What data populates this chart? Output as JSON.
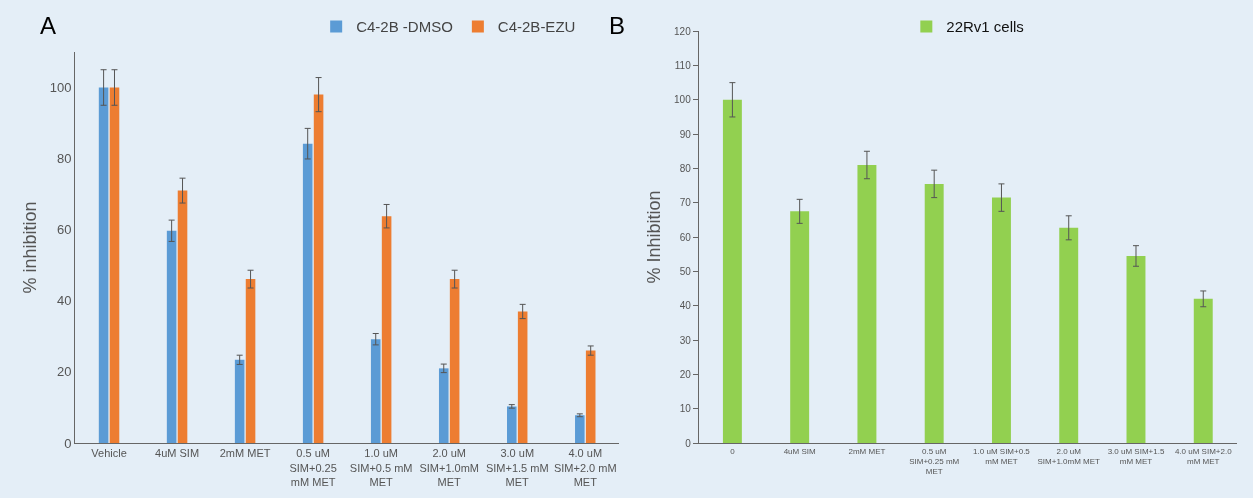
{
  "chart_data": [
    {
      "type": "bar",
      "annotations": [
        "A"
      ],
      "ylabel": "% inhibition",
      "categories": [
        "Vehicle",
        "4uM SIM",
        "2mM MET",
        "0.5 uM SIM+0.25 mM MET",
        "1.0 uM SIM+0.5 mM MET",
        "2.0 uM SIM+1.0mM MET",
        "3.0 uM SIM+1.5 mM MET",
        "4.0 uM SIM+2.0 mM MET"
      ],
      "series": [
        {
          "name": "C4-2B -DMSO",
          "color": "#5b9bd5",
          "values": [
            100,
            59.7,
            23.4,
            84.2,
            29.2,
            21.0,
            10.3,
            7.8
          ],
          "errors": [
            5,
            3,
            1.3,
            4.3,
            1.6,
            1.2,
            0.5,
            0.4
          ]
        },
        {
          "name": "C4-2B-EZU",
          "color": "#ed7d31",
          "values": [
            100,
            71,
            46.1,
            98,
            63.8,
            46.1,
            37,
            26
          ],
          "errors": [
            5,
            3.5,
            2.5,
            4.8,
            3.3,
            2.5,
            2,
            1.3
          ]
        }
      ],
      "ylim": [
        0,
        110
      ],
      "yticks": [
        0,
        20,
        40,
        60,
        80,
        100
      ],
      "legend": "top right",
      "grid": false
    },
    {
      "type": "bar",
      "annotations": [
        "B"
      ],
      "ylabel": "% Inhibition",
      "categories": [
        "0",
        "4uM SIM",
        "2mM MET",
        "0.5 uM SIM+0.25 mM MET",
        "1.0 uM SIM+0.5 mM MET",
        "2.0 uM SIM+1.0mM MET",
        "3.0 uM SIM+1.5 mM MET",
        "4.0 uM SIM+2.0 mM MET"
      ],
      "series": [
        {
          "name": "22Rv1 cells",
          "color": "#92d050",
          "values": [
            100,
            67.5,
            81,
            75.5,
            71.5,
            62.7,
            54.5,
            42
          ],
          "errors": [
            5,
            3.5,
            4,
            4,
            4,
            3.5,
            3,
            2.3
          ]
        }
      ],
      "ylim": [
        0,
        120
      ],
      "yticks": [
        0,
        10,
        20,
        30,
        40,
        50,
        60,
        70,
        80,
        90,
        100,
        110,
        120
      ],
      "legend": "top",
      "grid": false
    }
  ]
}
